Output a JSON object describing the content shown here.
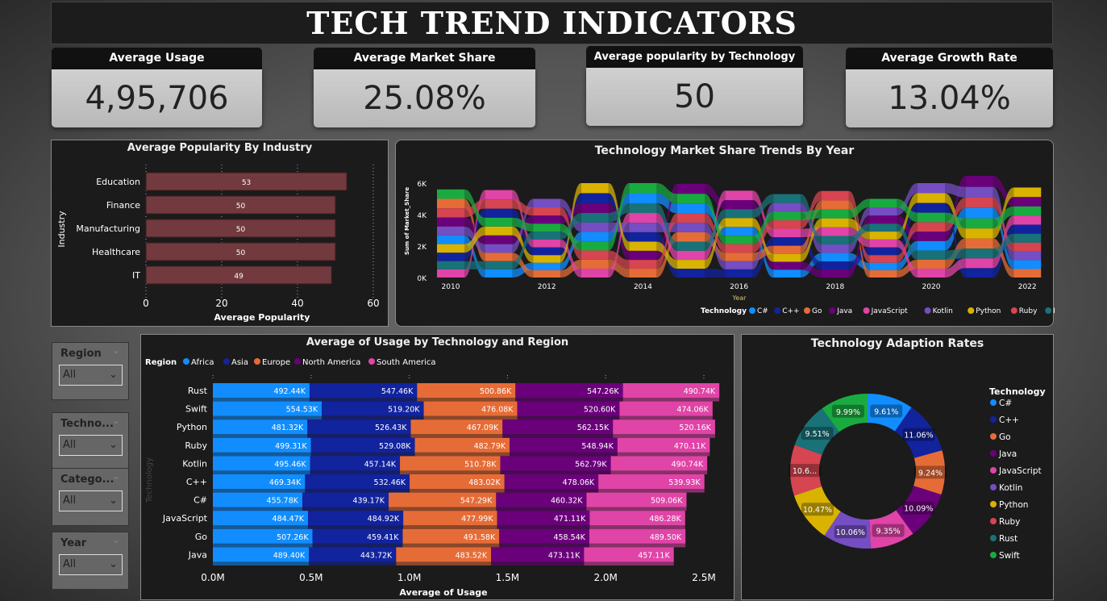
{
  "title": "TECH TREND INDICATORS",
  "kpis": [
    {
      "label": "Average Usage",
      "value": "4,95,706"
    },
    {
      "label": "Average Market Share",
      "value": "25.08%"
    },
    {
      "label": "Average popularity by Technology",
      "value": "50"
    },
    {
      "label": "Average Growth Rate",
      "value": "13.04%"
    }
  ],
  "slicers": [
    {
      "label": "Region",
      "value": "All"
    },
    {
      "label": "Techno...",
      "value": "All"
    },
    {
      "label": "Catego...",
      "value": "All"
    },
    {
      "label": "Year",
      "value": "All"
    }
  ],
  "colors": {
    "C#": "#118dff",
    "C++": "#12239e",
    "Go": "#e66c37",
    "Java": "#6b007b",
    "JavaScript": "#e044a7",
    "Kotlin": "#744ec2",
    "Python": "#d9b300",
    "Ruby": "#d64550",
    "Rust": "#197278",
    "Swift": "#1aab40",
    "bar": "#723a3e"
  },
  "chart_data": [
    {
      "type": "bar",
      "title": "Average Popularity By Industry",
      "xlabel": "Average Popularity",
      "ylabel": "Industry",
      "categories": [
        "Education",
        "Finance",
        "Manufacturing",
        "Healthcare",
        "IT"
      ],
      "values": [
        53,
        50,
        50,
        50,
        49
      ],
      "xlim": [
        0,
        60
      ],
      "ticks": [
        "0",
        "20",
        "40",
        "60"
      ]
    },
    {
      "type": "area",
      "subtype": "ribbon",
      "title": "Technology Market Share Trends By Year",
      "xlabel": "Year",
      "ylabel": "Sum of Market_Share",
      "ticks_y": [
        "0K",
        "2K",
        "4K",
        "6K"
      ],
      "ticks_x": [
        "2010",
        "2012",
        "2014",
        "2016",
        "2018",
        "2020",
        "2022"
      ],
      "legend_title": "Technology",
      "legend_position": "bottom-right",
      "x": [
        2010,
        2011,
        2012,
        2013,
        2014,
        2015,
        2016,
        2017,
        2018,
        2019,
        2020,
        2021,
        2022
      ],
      "series": [
        {
          "name": "C#",
          "values": [
            560,
            520,
            480,
            600,
            640,
            620,
            560,
            500,
            540,
            480,
            600,
            660,
            560
          ]
        },
        {
          "name": "C++",
          "values": [
            540,
            580,
            500,
            640,
            600,
            560,
            520,
            540,
            520,
            500,
            620,
            600,
            580
          ]
        },
        {
          "name": "Go",
          "values": [
            600,
            540,
            460,
            580,
            560,
            600,
            540,
            520,
            580,
            460,
            580,
            640,
            540
          ]
        },
        {
          "name": "Java",
          "values": [
            580,
            560,
            520,
            620,
            580,
            640,
            580,
            500,
            500,
            520,
            600,
            700,
            600
          ]
        },
        {
          "name": "JavaScript",
          "values": [
            520,
            600,
            500,
            560,
            620,
            580,
            600,
            540,
            560,
            500,
            560,
            620,
            580
          ]
        },
        {
          "name": "Kotlin",
          "values": [
            560,
            540,
            540,
            600,
            600,
            600,
            520,
            560,
            540,
            520,
            640,
            680,
            560
          ]
        },
        {
          "name": "Python",
          "values": [
            540,
            560,
            480,
            640,
            580,
            560,
            560,
            500,
            560,
            500,
            620,
            640,
            600
          ]
        },
        {
          "name": "Ruby",
          "values": [
            580,
            580,
            520,
            580,
            560,
            600,
            540,
            540,
            600,
            480,
            600,
            660,
            560
          ]
        },
        {
          "name": "Rust",
          "values": [
            520,
            520,
            500,
            600,
            620,
            580,
            560,
            560,
            540,
            500,
            580,
            620,
            560
          ]
        },
        {
          "name": "Swift",
          "values": [
            600,
            560,
            500,
            580,
            640,
            620,
            540,
            540,
            560,
            540,
            600,
            640,
            580
          ]
        }
      ],
      "ylim": [
        0,
        6500
      ]
    },
    {
      "type": "bar",
      "subtype": "stacked-horizontal",
      "title": "Average of Usage by Technology and Region",
      "xlabel": "Average of Usage",
      "ylabel": "Technology",
      "legend_title": "Region",
      "legend_position": "top-left",
      "ticks": [
        "0.0M",
        "0.5M",
        "1.0M",
        "1.5M",
        "2.0M",
        "2.5M"
      ],
      "xlim": [
        0,
        2.6
      ],
      "categories": [
        "Rust",
        "Swift",
        "Python",
        "Ruby",
        "Kotlin",
        "C++",
        "C#",
        "JavaScript",
        "Go",
        "Java"
      ],
      "series": [
        {
          "name": "Africa",
          "color": "#118dff",
          "labels": [
            "492.44K",
            "554.53K",
            "481.32K",
            "499.31K",
            "495.46K",
            "469.34K",
            "455.78K",
            "484.47K",
            "507.26K",
            "489.40K"
          ]
        },
        {
          "name": "Asia",
          "color": "#12239e",
          "labels": [
            "547.46K",
            "519.20K",
            "526.43K",
            "529.08K",
            "457.14K",
            "532.46K",
            "439.17K",
            "484.92K",
            "459.41K",
            "443.72K"
          ]
        },
        {
          "name": "Europe",
          "color": "#e66c37",
          "labels": [
            "500.86K",
            "476.08K",
            "467.09K",
            "482.79K",
            "510.78K",
            "483.02K",
            "547.29K",
            "477.99K",
            "491.58K",
            "483.52K"
          ]
        },
        {
          "name": "North America",
          "color": "#6b007b",
          "labels": [
            "547.26K",
            "520.60K",
            "562.15K",
            "548.94K",
            "562.79K",
            "478.06K",
            "460.32K",
            "471.11K",
            "458.54K",
            "473.11K"
          ]
        },
        {
          "name": "South America",
          "color": "#e044a7",
          "labels": [
            "490.74K",
            "474.06K",
            "520.16K",
            "470.11K",
            "490.74K",
            "539.93K",
            "509.06K",
            "486.28K",
            "489.50K",
            "457.11K"
          ]
        }
      ]
    },
    {
      "type": "pie",
      "subtype": "donut",
      "title": "Technology Adaption Rates",
      "legend_title": "Technology",
      "legend_position": "right",
      "categories": [
        "C#",
        "C++",
        "Go",
        "Java",
        "JavaScript",
        "Kotlin",
        "Python",
        "Ruby",
        "Rust",
        "Swift"
      ],
      "values": [
        9.61,
        11.06,
        9.24,
        10.09,
        9.35,
        10.06,
        10.47,
        10.62,
        9.51,
        9.99
      ],
      "labels": [
        "9.61%",
        "11.06%",
        "9.24%",
        "10.09%",
        "9.35%",
        "10.06%",
        "10.47%",
        "10.6...",
        "9.51%",
        "9.99%"
      ]
    }
  ]
}
